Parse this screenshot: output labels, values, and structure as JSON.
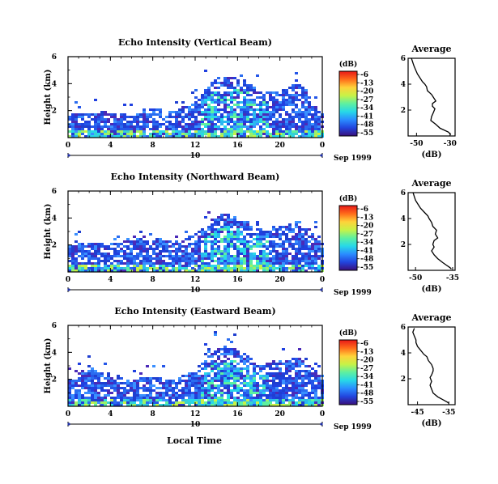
{
  "figure": {
    "date_label": "Sep 1999",
    "local_time_label": "Local Time",
    "colorbar_unit": "(dB)",
    "colorbar_ticks": [
      -6,
      -13,
      -20,
      -27,
      -34,
      -41,
      -48,
      -55
    ],
    "colormap": [
      "#3a0f7a",
      "#2244dd",
      "#2a8cff",
      "#27d8e8",
      "#5ef0a0",
      "#c8f246",
      "#ffd23a",
      "#ff6b1a",
      "#e81818"
    ],
    "grid": false
  },
  "panels": [
    {
      "title": "Echo Intensity (Vertical Beam)",
      "ylabel": "Height (km)",
      "x_ticks": [
        "0",
        "4",
        "8",
        "12",
        "16",
        "20",
        "0"
      ],
      "date_tick": "10",
      "y_ticks": [
        "6",
        "4",
        "2"
      ],
      "profile": {
        "title": "Average",
        "xlabel": "(dB)",
        "x_ticks": [
          "-50",
          "-30"
        ],
        "y_ticks": [
          "6",
          "4",
          "2"
        ]
      }
    },
    {
      "title": "Echo Intensity (Northward Beam)",
      "ylabel": "Height (km)",
      "x_ticks": [
        "0",
        "4",
        "8",
        "12",
        "16",
        "20",
        "0"
      ],
      "date_tick": "10",
      "y_ticks": [
        "6",
        "4",
        "2"
      ],
      "profile": {
        "title": "Average",
        "xlabel": "(dB)",
        "x_ticks": [
          "-50",
          "-35"
        ],
        "y_ticks": [
          "6",
          "4",
          "2"
        ]
      }
    },
    {
      "title": "Echo Intensity (Eastward Beam)",
      "ylabel": "Height (km)",
      "x_ticks": [
        "0",
        "4",
        "8",
        "12",
        "16",
        "20",
        "0"
      ],
      "date_tick": "10",
      "y_ticks": [
        "6",
        "4",
        "2"
      ],
      "profile": {
        "title": "Average",
        "xlabel": "(dB)",
        "x_ticks": [
          "-45",
          "-35"
        ],
        "y_ticks": [
          "6",
          "4",
          "2"
        ]
      }
    }
  ],
  "chart_data": [
    {
      "type": "heatmap",
      "title": "Echo Intensity (Vertical Beam)",
      "xlabel": "Local Time",
      "ylabel": "Height (km)",
      "xlim": [
        0,
        24
      ],
      "ylim": [
        0,
        6
      ],
      "zlabel": "(dB)",
      "zlim": [
        -55,
        -6
      ],
      "echo_top_km": [
        [
          0,
          1.9
        ],
        [
          2,
          1.8
        ],
        [
          4,
          2.0
        ],
        [
          6,
          1.6
        ],
        [
          8,
          2.2
        ],
        [
          10,
          2.0
        ],
        [
          12,
          2.6
        ],
        [
          13,
          3.6
        ],
        [
          14,
          4.4
        ],
        [
          15,
          4.6
        ],
        [
          16,
          4.4
        ],
        [
          17,
          4.2
        ],
        [
          18,
          3.4
        ],
        [
          20,
          3.6
        ],
        [
          22,
          4.0
        ],
        [
          24,
          2.0
        ]
      ]
    },
    {
      "type": "line",
      "title": "Average",
      "xlabel": "(dB)",
      "xlim": [
        -55,
        -27
      ],
      "ylim": [
        0,
        6
      ],
      "x": [
        -53.0,
        -52.0,
        -51.5,
        -50.5,
        -49.5,
        -48.0,
        -46.5,
        -45.0,
        -44.0,
        -43.5,
        -41.0,
        -39.5,
        -38.5,
        -40.5,
        -40.5,
        -39.0,
        -40.0,
        -41.0,
        -41.5,
        -38.5,
        -36.0,
        -31.0,
        -29.5
      ],
      "y": [
        6.0,
        5.6,
        5.4,
        5.1,
        4.8,
        4.5,
        4.2,
        4.0,
        3.8,
        3.5,
        3.2,
        2.9,
        2.7,
        2.5,
        2.3,
        2.1,
        1.8,
        1.5,
        1.2,
        0.9,
        0.6,
        0.3,
        0.1
      ]
    },
    {
      "type": "heatmap",
      "title": "Echo Intensity (Northward Beam)",
      "xlabel": "Local Time",
      "ylabel": "Height (km)",
      "xlim": [
        0,
        24
      ],
      "ylim": [
        0,
        6
      ],
      "zlabel": "(dB)",
      "zlim": [
        -55,
        -6
      ],
      "echo_top_km": [
        [
          0,
          2.0
        ],
        [
          2,
          2.2
        ],
        [
          4,
          2.0
        ],
        [
          6,
          2.4
        ],
        [
          8,
          2.6
        ],
        [
          10,
          2.2
        ],
        [
          12,
          2.8
        ],
        [
          13,
          3.4
        ],
        [
          14,
          4.2
        ],
        [
          15,
          4.4
        ],
        [
          16,
          4.0
        ],
        [
          17,
          3.8
        ],
        [
          18,
          3.2
        ],
        [
          20,
          3.4
        ],
        [
          22,
          3.8
        ],
        [
          24,
          2.4
        ]
      ]
    },
    {
      "type": "line",
      "title": "Average",
      "xlabel": "(dB)",
      "xlim": [
        -53,
        -34
      ],
      "ylim": [
        0,
        6
      ],
      "x": [
        -51.0,
        -50.5,
        -50.0,
        -49.0,
        -48.0,
        -46.5,
        -45.0,
        -44.5,
        -43.5,
        -43.0,
        -41.5,
        -42.0,
        -41.0,
        -42.5,
        -43.0,
        -42.5,
        -43.5,
        -42.5,
        -41.0,
        -39.0,
        -37.5,
        -36.0,
        -35.5
      ],
      "y": [
        6.0,
        5.7,
        5.4,
        5.1,
        4.8,
        4.5,
        4.2,
        4.0,
        3.7,
        3.4,
        3.1,
        2.8,
        2.5,
        2.3,
        2.0,
        1.8,
        1.5,
        1.2,
        0.9,
        0.6,
        0.4,
        0.2,
        0.1
      ]
    },
    {
      "type": "heatmap",
      "title": "Echo Intensity (Eastward Beam)",
      "xlabel": "Local Time",
      "ylabel": "Height (km)",
      "xlim": [
        0,
        24
      ],
      "ylim": [
        0,
        6
      ],
      "zlabel": "(dB)",
      "zlim": [
        -55,
        -6
      ],
      "echo_top_km": [
        [
          0,
          2.2
        ],
        [
          2,
          2.8
        ],
        [
          4,
          2.2
        ],
        [
          6,
          2.0
        ],
        [
          8,
          2.2
        ],
        [
          10,
          2.0
        ],
        [
          12,
          2.6
        ],
        [
          13,
          3.6
        ],
        [
          14,
          4.2
        ],
        [
          15,
          4.6
        ],
        [
          16,
          4.2
        ],
        [
          17,
          3.8
        ],
        [
          18,
          3.0
        ],
        [
          20,
          3.4
        ],
        [
          22,
          3.6
        ],
        [
          24,
          2.2
        ]
      ]
    },
    {
      "type": "line",
      "title": "Average",
      "xlabel": "(dB)",
      "xlim": [
        -48,
        -33
      ],
      "ylim": [
        0,
        6
      ],
      "x": [
        -46.0,
        -46.5,
        -46.0,
        -45.5,
        -45.5,
        -45.0,
        -44.0,
        -43.0,
        -42.0,
        -41.5,
        -40.5,
        -40.0,
        -40.0,
        -40.5,
        -41.0,
        -40.5,
        -41.0,
        -40.5,
        -40.0,
        -38.5,
        -37.0,
        -35.5,
        -35.0
      ],
      "y": [
        5.9,
        5.6,
        5.3,
        5.0,
        4.8,
        4.5,
        4.2,
        3.9,
        3.7,
        3.4,
        3.1,
        2.8,
        2.6,
        2.3,
        2.1,
        1.8,
        1.5,
        1.2,
        0.9,
        0.6,
        0.4,
        0.2,
        0.1
      ]
    }
  ]
}
